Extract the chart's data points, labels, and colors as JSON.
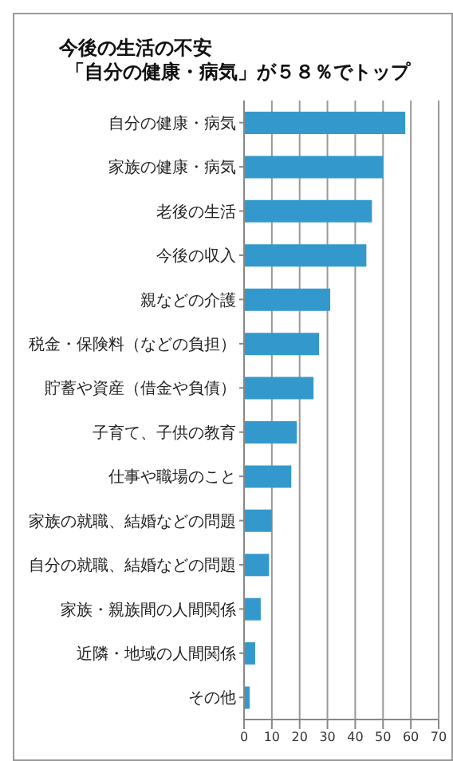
{
  "chart_data": {
    "type": "bar",
    "orientation": "horizontal",
    "title": "今後の生活の不安",
    "subtitle": "「自分の健康・病気」が５８％でトップ",
    "categories": [
      "自分の健康・病気",
      "家族の健康・病気",
      "老後の生活",
      "今後の収入",
      "親などの介護",
      "税金・保険料（などの負担）",
      "貯蓄や資産（借金や負債）",
      "子育て、子供の教育",
      "仕事や職場のこと",
      "家族の就職、結婚などの問題",
      "自分の就職、結婚などの問題",
      "家族・親族間の人間関係",
      "近隣・地域の人間関係",
      "その他"
    ],
    "values": [
      58,
      50,
      46,
      44,
      31,
      27,
      25,
      19,
      17,
      10,
      9,
      6,
      4,
      2
    ],
    "color": "#3399cc",
    "xlim": [
      0,
      70
    ],
    "xticks": [
      0,
      10,
      20,
      30,
      40,
      50,
      60,
      70
    ],
    "grid": "x"
  }
}
